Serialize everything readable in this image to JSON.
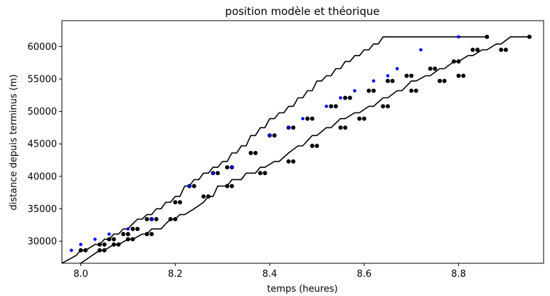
{
  "chart_data": {
    "type": "line",
    "title": "position modèle et théorique",
    "xlabel": "temps (heures)",
    "ylabel": "distance depuis terminus (m)",
    "xlim": [
      7.96,
      8.98
    ],
    "ylim": [
      26600,
      64000
    ],
    "xticks": [
      8.0,
      8.2,
      8.4,
      8.6,
      8.8
    ],
    "xtick_labels": [
      "8.0",
      "8.2",
      "8.4",
      "8.6",
      "8.8"
    ],
    "yticks": [
      30000,
      35000,
      40000,
      45000,
      50000,
      55000,
      60000
    ],
    "ytick_labels": [
      "30000",
      "35000",
      "40000",
      "45000",
      "50000",
      "55000",
      "60000"
    ],
    "grid": false,
    "colors": {
      "model": "#000000",
      "theoretical": "#0000ff"
    },
    "series": [
      {
        "kind": "model-trajectory",
        "color": "#000000",
        "x": [
          7.96,
          7.99,
          8.0,
          8.01,
          8.03,
          8.04,
          8.05,
          8.06,
          8.07,
          8.08,
          8.09,
          8.1,
          8.11,
          8.12,
          8.13,
          8.14,
          8.15,
          8.16,
          8.17,
          8.18,
          8.19,
          8.2,
          8.21,
          8.22,
          8.23,
          8.24,
          8.25,
          8.26,
          8.27,
          8.28,
          8.29,
          8.3,
          8.31,
          8.32,
          8.33,
          8.34,
          8.35,
          8.36,
          8.37,
          8.38,
          8.39,
          8.4,
          8.41,
          8.42,
          8.43,
          8.44,
          8.45,
          8.46,
          8.47,
          8.48,
          8.49,
          8.5,
          8.51,
          8.52,
          8.53,
          8.54,
          8.55,
          8.56,
          8.57,
          8.58,
          8.59,
          8.6,
          8.61,
          8.62,
          8.63,
          8.64,
          8.65,
          8.66,
          8.67,
          8.68,
          8.69,
          8.7,
          8.71,
          8.72,
          8.73,
          8.74,
          8.75,
          8.76,
          8.77,
          8.78,
          8.79,
          8.8,
          8.81,
          8.82,
          8.83,
          8.84,
          8.85,
          8.86
        ],
        "y": [
          26600,
          27800,
          28600,
          28600,
          29500,
          29500,
          30300,
          30300,
          31100,
          31100,
          31900,
          31900,
          32700,
          33400,
          33400,
          34100,
          34100,
          35000,
          35000,
          36000,
          36000,
          36900,
          36900,
          38500,
          38500,
          39500,
          39500,
          40500,
          40500,
          41400,
          41400,
          42300,
          42300,
          43600,
          43600,
          44700,
          44700,
          46300,
          46300,
          47500,
          47500,
          48900,
          48900,
          49800,
          49800,
          50800,
          50800,
          52100,
          52100,
          53200,
          53200,
          54700,
          54700,
          55500,
          55500,
          56600,
          56600,
          57700,
          57700,
          58600,
          58600,
          59500,
          59500,
          60400,
          60400,
          61500,
          61500,
          61500,
          61500,
          61500,
          61500,
          61500,
          61500,
          61500,
          61500,
          61500,
          61500,
          61500,
          61500,
          61500,
          61500,
          61500,
          61500,
          61500,
          61500,
          61500,
          61500,
          61500
        ]
      },
      {
        "kind": "model-trajectory",
        "color": "#000000",
        "x": [
          7.96,
          8.0,
          8.02,
          8.04,
          8.05,
          8.07,
          8.08,
          8.1,
          8.11,
          8.13,
          8.14,
          8.15,
          8.17,
          8.18,
          8.19,
          8.2,
          8.21,
          8.22,
          8.24,
          8.26,
          8.27,
          8.28,
          8.29,
          8.31,
          8.32,
          8.34,
          8.35,
          8.37,
          8.38,
          8.39,
          8.41,
          8.42,
          8.44,
          8.46,
          8.47,
          8.49,
          8.5,
          8.52,
          8.53,
          8.55,
          8.56,
          8.58,
          8.59,
          8.61,
          8.62,
          8.64,
          8.65,
          8.67,
          8.68,
          8.7,
          8.71,
          8.73,
          8.74,
          8.76,
          8.77,
          8.79,
          8.8,
          8.82,
          8.83,
          8.85,
          8.86,
          8.88,
          8.89,
          8.91,
          8.92,
          8.94,
          8.95
        ],
        "y": [
          26200,
          26600,
          27600,
          28600,
          28600,
          29500,
          29500,
          30300,
          30300,
          31100,
          31100,
          31900,
          31900,
          32700,
          33400,
          33400,
          34100,
          34100,
          35000,
          36000,
          36900,
          36900,
          38500,
          38500,
          39500,
          39500,
          40500,
          40500,
          41400,
          41400,
          42300,
          42300,
          43600,
          44700,
          44700,
          46300,
          46300,
          47500,
          47500,
          48900,
          48900,
          49800,
          49800,
          50800,
          50800,
          52100,
          52100,
          53200,
          53200,
          54700,
          54700,
          55500,
          55500,
          56600,
          56600,
          57700,
          57700,
          58600,
          58600,
          59500,
          59500,
          60400,
          60400,
          61500,
          61500,
          61500,
          61500
        ]
      },
      {
        "kind": "model-stops",
        "color": "#000000",
        "marker": "circle",
        "x": [
          8.0,
          8.01,
          8.04,
          8.05,
          8.06,
          8.07,
          8.09,
          8.1,
          8.11,
          8.12,
          8.14,
          8.15,
          8.16,
          8.2,
          8.21,
          8.23,
          8.24,
          8.28,
          8.29,
          8.31,
          8.32,
          8.36,
          8.37,
          8.4,
          8.41,
          8.44,
          8.45,
          8.48,
          8.49,
          8.53,
          8.54,
          8.56,
          8.57,
          8.61,
          8.62,
          8.65,
          8.66,
          8.69,
          8.7,
          8.74,
          8.75,
          8.79,
          8.8,
          8.83,
          8.84,
          8.86
        ],
        "y": [
          28600,
          28600,
          29500,
          29500,
          30300,
          30300,
          31100,
          31100,
          31900,
          31900,
          33400,
          33400,
          33400,
          36000,
          36000,
          38500,
          38500,
          40500,
          40500,
          41400,
          41400,
          43600,
          43600,
          46300,
          46300,
          47500,
          47500,
          48900,
          48900,
          50800,
          50800,
          52100,
          52100,
          53200,
          53200,
          54700,
          54700,
          55500,
          55500,
          56600,
          56600,
          57700,
          57700,
          59500,
          59500,
          61500
        ]
      },
      {
        "kind": "model-stops",
        "color": "#000000",
        "marker": "circle",
        "x": [
          8.04,
          8.05,
          8.07,
          8.08,
          8.1,
          8.11,
          8.14,
          8.15,
          8.19,
          8.2,
          8.26,
          8.27,
          8.31,
          8.32,
          8.38,
          8.39,
          8.44,
          8.45,
          8.49,
          8.5,
          8.55,
          8.56,
          8.59,
          8.6,
          8.64,
          8.65,
          8.7,
          8.71,
          8.76,
          8.77,
          8.8,
          8.81,
          8.89,
          8.9,
          8.95
        ],
        "y": [
          28600,
          28600,
          29500,
          29500,
          30300,
          30300,
          31100,
          31100,
          33400,
          33400,
          36900,
          36900,
          38500,
          38500,
          40500,
          40500,
          42300,
          42300,
          44700,
          44700,
          47500,
          47500,
          48900,
          48900,
          50800,
          50800,
          53200,
          53200,
          54700,
          54700,
          55500,
          55500,
          59500,
          59500,
          61500
        ]
      },
      {
        "kind": "theoretical",
        "color": "#0000ff",
        "marker": "circle",
        "x": [
          7.98,
          8.0,
          8.03,
          8.06,
          8.1,
          8.15,
          8.23,
          8.28,
          8.32,
          8.4,
          8.44,
          8.47,
          8.52,
          8.55,
          8.58,
          8.62,
          8.65,
          8.67,
          8.72,
          8.8
        ],
        "y": [
          28600,
          29500,
          30300,
          31100,
          31900,
          33400,
          38500,
          40500,
          41400,
          46300,
          47500,
          48900,
          50800,
          52100,
          53200,
          54700,
          55500,
          56600,
          59500,
          61500
        ]
      }
    ]
  }
}
